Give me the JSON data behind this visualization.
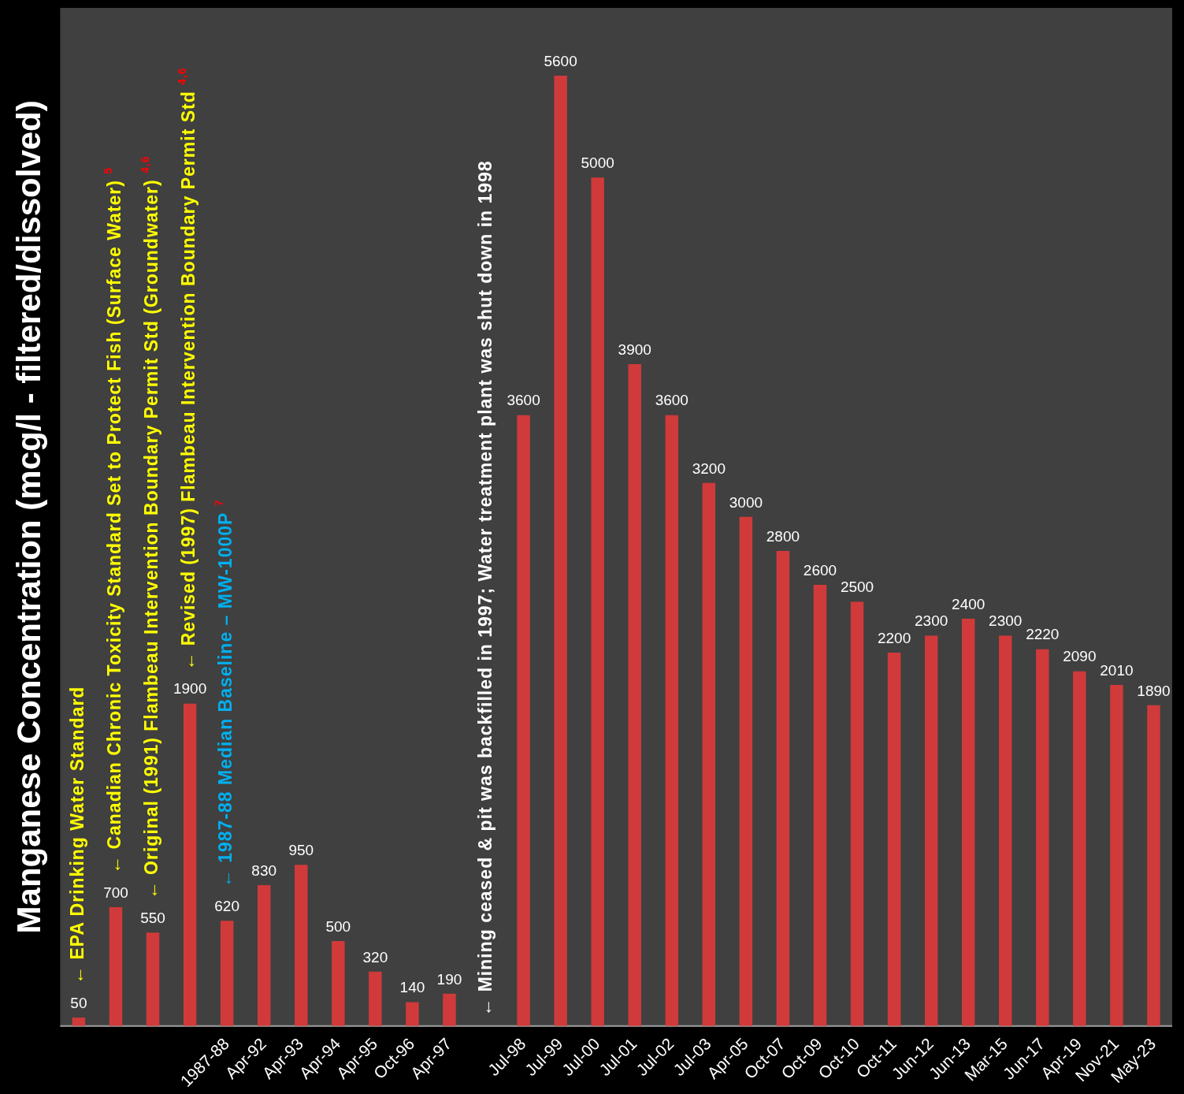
{
  "chart_data": {
    "type": "bar",
    "ylabel": "Manganese Concentration (mcg/l - filtered/dissolved)",
    "categories": [
      null,
      null,
      null,
      null,
      "1987-88",
      "Apr-92",
      "Apr-93",
      "Apr-94",
      "Apr-95",
      "Oct-96",
      "Apr-97",
      null,
      "Jul-98",
      "Jul-99",
      "Jul-00",
      "Jul-01",
      "Jul-02",
      "Jul-03",
      "Apr-05",
      "Oct-07",
      "Oct-09",
      "Oct-10",
      "Oct-11",
      "Jun-12",
      "Jun-13",
      "Mar-15",
      "Jun-17",
      "Apr-19",
      "Nov-21",
      "May-23"
    ],
    "values": [
      50,
      700,
      550,
      1900,
      620,
      830,
      950,
      500,
      320,
      140,
      190,
      null,
      3600,
      5600,
      5000,
      3900,
      3600,
      3200,
      3000,
      2800,
      2600,
      2500,
      2200,
      2300,
      2400,
      2300,
      2220,
      2090,
      2010,
      1890
    ],
    "color": "#d13a3a",
    "data_labels": true,
    "grid": false,
    "legend": false,
    "annotations": [
      "← EPA Drinking Water Standard",
      "← Canadian Chronic Toxicity Standard Set to Protect Fish (Surface Water) $^{5}$",
      "← Original (1991) Flambeau Intervention Boundary Permit Std (Groundwater) $^{4,6}$",
      "← Revised (1997) Flambeau Intervention Boundary Permit Std $^{4,6}$",
      "← 1987-88 Median Baseline – MW-1000P $^{7}$",
      "← Mining ceased & pit was backfilled in 1997; Water treatment plant was shut down in 1998"
    ]
  }
}
